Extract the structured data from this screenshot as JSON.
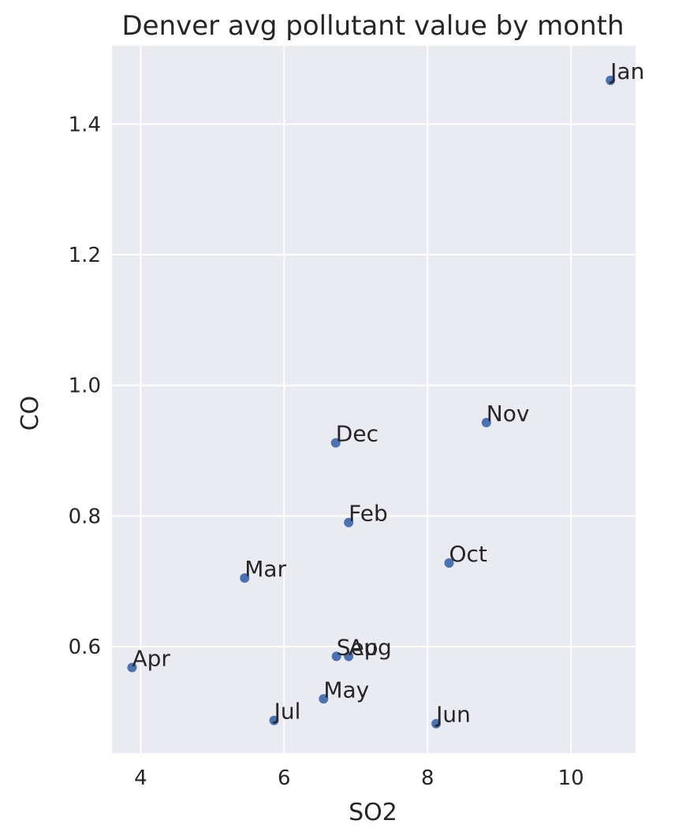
{
  "chart_data": {
    "type": "scatter",
    "title": "Denver avg pollutant value by month",
    "xlabel": "SO2",
    "ylabel": "CO",
    "xlim": [
      3.6,
      10.9
    ],
    "ylim": [
      0.437,
      1.52
    ],
    "xticks": [
      4,
      6,
      8,
      10
    ],
    "yticks": [
      0.6,
      0.8,
      1.0,
      1.2,
      1.4
    ],
    "grid": true,
    "colors": {
      "background": "#eaeaf2",
      "grid": "#ffffff",
      "point": "#4c72b0",
      "text": "#262626"
    },
    "points": [
      {
        "label": "Jan",
        "x": 10.55,
        "y": 1.467
      },
      {
        "label": "Feb",
        "x": 6.9,
        "y": 0.79
      },
      {
        "label": "Mar",
        "x": 5.45,
        "y": 0.705
      },
      {
        "label": "Apr",
        "x": 3.88,
        "y": 0.568
      },
      {
        "label": "May",
        "x": 6.55,
        "y": 0.52
      },
      {
        "label": "Jun",
        "x": 8.12,
        "y": 0.482
      },
      {
        "label": "Jul",
        "x": 5.86,
        "y": 0.487
      },
      {
        "label": "Aug",
        "x": 6.9,
        "y": 0.585
      },
      {
        "label": "Sep",
        "x": 6.73,
        "y": 0.585
      },
      {
        "label": "Oct",
        "x": 8.3,
        "y": 0.728
      },
      {
        "label": "Nov",
        "x": 8.82,
        "y": 0.943
      },
      {
        "label": "Dec",
        "x": 6.72,
        "y": 0.912
      }
    ]
  }
}
